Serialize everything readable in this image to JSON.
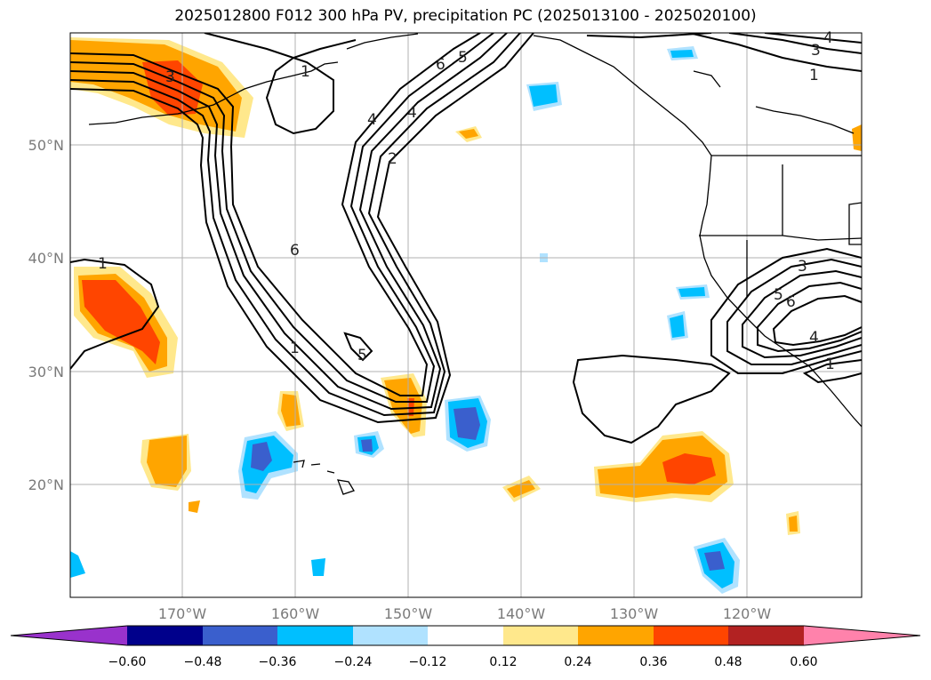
{
  "title": "2025012800 F012 300 hPa PV, precipitation PC (2025013100 - 2025020100)",
  "lat_ticks": [
    "50°N",
    "40°N",
    "30°N",
    "20°N"
  ],
  "lon_ticks": [
    "170°W",
    "160°W",
    "150°W",
    "140°W",
    "130°W",
    "120°W"
  ],
  "colorbar": {
    "labels": [
      "−0.60",
      "−0.48",
      "−0.36",
      "−0.24",
      "−0.12",
      "0.12",
      "0.24",
      "0.36",
      "0.48",
      "0.60"
    ],
    "colors": [
      "#9932cc",
      "#00008b",
      "#3a5fcd",
      "#00bfff",
      "#b0e2ff",
      "#ffffff",
      "#ffe88c",
      "#ffa500",
      "#ff4500",
      "#b22222",
      "#ff82ab"
    ]
  },
  "contour_labels": [
    "3",
    "1",
    "4",
    "6",
    "5",
    "4",
    "2",
    "1",
    "3",
    "4",
    "1",
    "6",
    "1",
    "5",
    "3",
    "5",
    "6",
    "4",
    "1"
  ]
}
